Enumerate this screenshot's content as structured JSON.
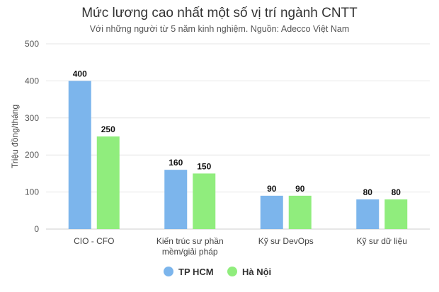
{
  "chart_data": {
    "type": "bar",
    "title": "Mức lương cao nhất một số vị trí ngành CNTT",
    "subtitle": "Với những người từ 5 năm kinh nghiệm. Nguồn: Adecco Việt Nam",
    "ylabel": "Triệu đồng/tháng",
    "xlabel": "",
    "ylim": [
      0,
      500
    ],
    "yticks": [
      0,
      100,
      200,
      300,
      400,
      500
    ],
    "grid": true,
    "legend_position": "bottom",
    "categories": [
      [
        "CIO - CFO"
      ],
      [
        "Kiến trúc sư phần",
        "mềm/giải pháp"
      ],
      [
        "Kỹ sư DevOps"
      ],
      [
        "Kỹ sư dữ liệu"
      ]
    ],
    "series": [
      {
        "name": "TP HCM",
        "color": "#7cb5ec",
        "values": [
          400,
          160,
          90,
          80
        ]
      },
      {
        "name": "Hà Nội",
        "color": "#90ed7d",
        "values": [
          250,
          150,
          90,
          80
        ]
      }
    ]
  }
}
